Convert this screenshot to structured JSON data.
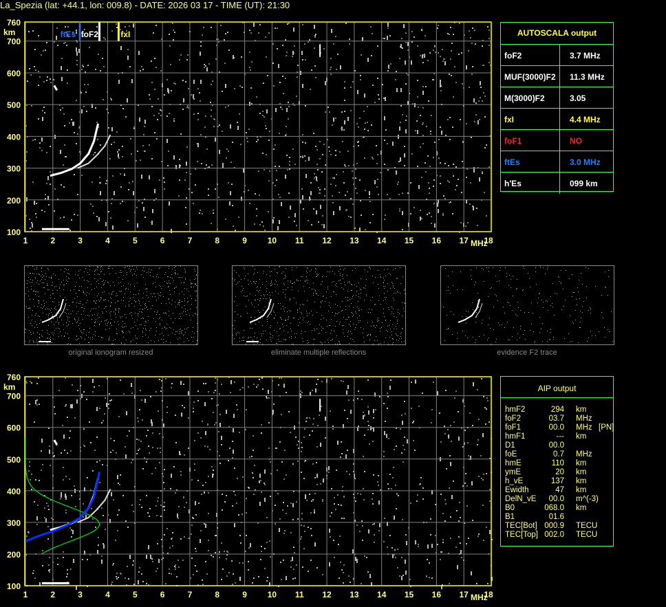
{
  "title": "La_Spezia (lat: +44.1, lon: 009.8) - DATE: 2026 03 17 - TIME (UT): 21:30",
  "axes": {
    "y_unit": "km",
    "x_unit": "MHz",
    "y_ticks": [
      760,
      700,
      600,
      500,
      400,
      300,
      200,
      100
    ],
    "x_ticks": [
      1,
      2,
      3,
      4,
      5,
      6,
      7,
      8,
      9,
      10,
      11,
      12,
      13,
      14,
      15,
      16,
      17,
      18
    ]
  },
  "markers": {
    "ftEs": {
      "label": "ftEs",
      "freq": 3.0,
      "color": "#1e6fff"
    },
    "foF2": {
      "label": "foF2",
      "freq": 3.7,
      "color": "#ffffff"
    },
    "fxI": {
      "label": "fxI",
      "freq": 4.4,
      "color": "#ffff00"
    }
  },
  "autoscala": {
    "title": "AUTOSCALA output",
    "rows": [
      {
        "name": "foF2",
        "value": "3.7 MHz",
        "color": "#ffffff"
      },
      {
        "name": "MUF(3000)F2",
        "value": "11.3 MHz",
        "color": "#ffffff"
      },
      {
        "name": "M(3000)F2",
        "value": "3.05",
        "color": "#ffffff"
      },
      {
        "name": "fxI",
        "value": "4.4 MHz",
        "color": "#ffff40"
      },
      {
        "name": "foF1",
        "value": "NO",
        "color": "#ff2020"
      },
      {
        "name": "ftEs",
        "value": "3.0 MHz",
        "color": "#2080ff"
      },
      {
        "name": "h'Es",
        "value": "099    km",
        "color": "#ffffff"
      }
    ]
  },
  "thumbnails": [
    {
      "label": "original ionogram resized"
    },
    {
      "label": "eliminate multiple reflections"
    },
    {
      "label": "evidence F2 trace"
    }
  ],
  "aip": {
    "title": "AIP output",
    "rows": [
      [
        "hmF2",
        "294",
        "km",
        ""
      ],
      [
        "foF2",
        "03.7",
        "MHz",
        ""
      ],
      [
        "foF1",
        "00.0",
        "MHz",
        "[PN]"
      ],
      [
        "hmF1",
        "---",
        "km",
        ""
      ],
      [
        "D1",
        "00.0",
        "",
        ""
      ],
      [
        "foE",
        "0.7",
        "MHz",
        ""
      ],
      [
        "hmE",
        "110",
        "km",
        ""
      ],
      [
        "ymE",
        "20",
        "km",
        ""
      ],
      [
        "h_vE",
        "137",
        "km",
        ""
      ],
      [
        "Ewidth",
        "47",
        "km",
        ""
      ],
      [
        "DelN_vE",
        "00.0",
        "m^(-3)",
        ""
      ],
      [
        "B0",
        "068.0",
        "km",
        ""
      ],
      [
        "B1",
        "01.6",
        "",
        ""
      ],
      [
        "TEC[Bot]",
        "000.9",
        "TECU",
        ""
      ],
      [
        "TEC[Top]",
        "002.0",
        "TECU",
        ""
      ]
    ]
  },
  "colors": {
    "frame": "#ffff00",
    "grid": "#808080",
    "table_border": "#40ff40",
    "text": "#ffff80",
    "profile": "#00e000",
    "fitted_trace": "#0030ff"
  }
}
